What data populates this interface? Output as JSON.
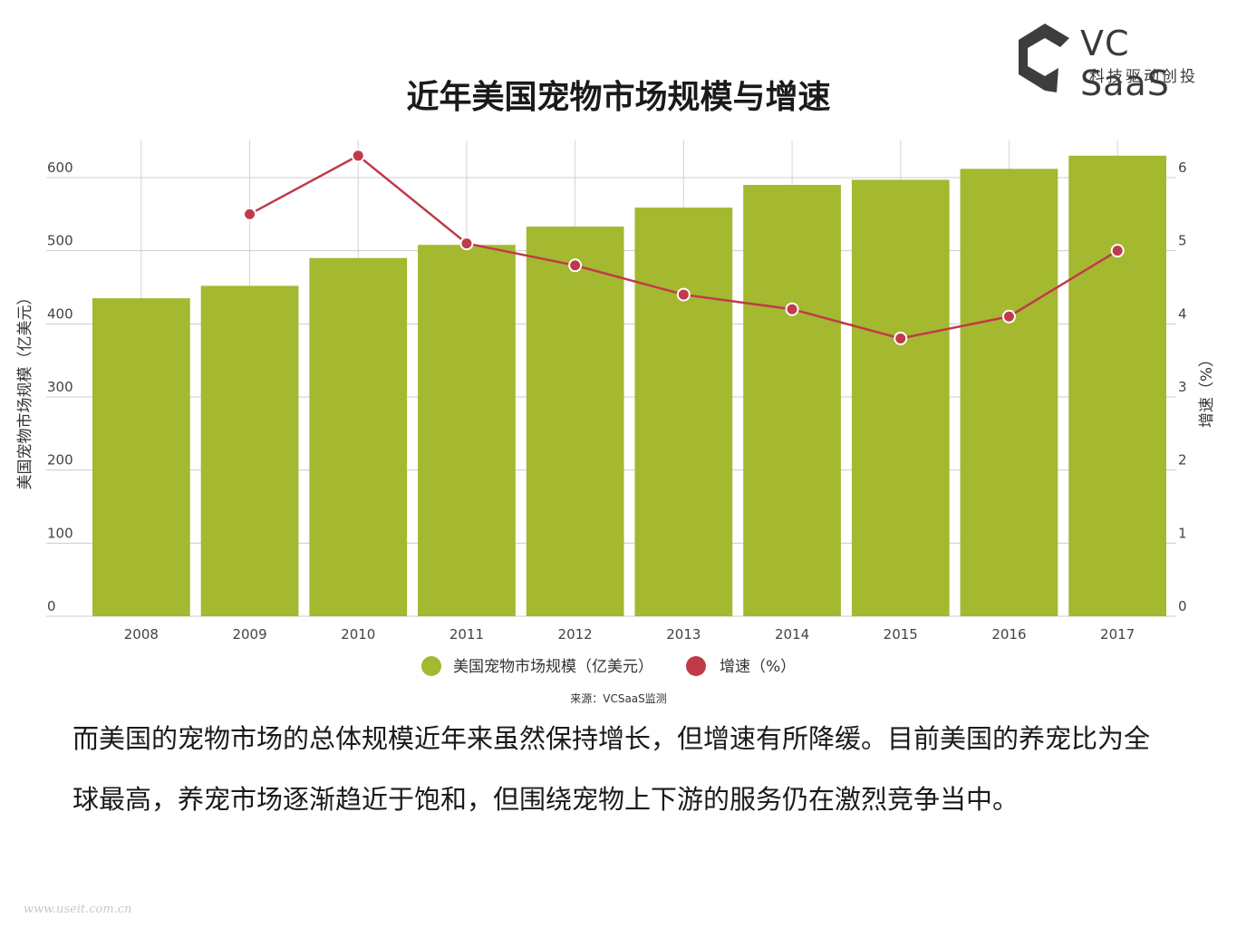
{
  "brand": {
    "name": "VC SaaS",
    "slogan": "科技驱动创投"
  },
  "chart_data": {
    "type": "bar",
    "title": "近年美国宠物市场规模与增速",
    "categories": [
      "2008",
      "2009",
      "2010",
      "2011",
      "2012",
      "2013",
      "2014",
      "2015",
      "2016",
      "2017"
    ],
    "series": [
      {
        "name": "美国宠物市场规模（亿美元）",
        "type": "bar",
        "axis": "left",
        "color": "#a4b830",
        "values": [
          435,
          452,
          490,
          508,
          533,
          559,
          590,
          597,
          612,
          630
        ]
      },
      {
        "name": "增速（%）",
        "type": "line",
        "axis": "right",
        "color": "#c13a4a",
        "values": [
          null,
          5.5,
          6.3,
          5.1,
          4.8,
          4.4,
          4.2,
          3.8,
          4.1,
          5.0
        ]
      }
    ],
    "ylabel": "美国宠物市场规模（亿美元）",
    "ylabel_right": "增速（%）",
    "ylim": [
      0,
      600
    ],
    "ylim_right": [
      0,
      6
    ],
    "yticks": [
      "0",
      "100",
      "200",
      "300",
      "400",
      "500",
      "600"
    ],
    "yticks_right": [
      "0",
      "1",
      "2",
      "3",
      "4",
      "5",
      "6"
    ],
    "grid": true,
    "legend": "bottom"
  },
  "source": "来源：VCSaaS监测",
  "body_text": "而美国的宠物市场的总体规模近年来虽然保持增长，但增速有所降缓。目前美国的养宠比为全球最高，养宠市场逐渐趋近于饱和，但围绕宠物上下游的服务仍在激烈竞争当中。",
  "watermark": "www.useit.com.cn"
}
